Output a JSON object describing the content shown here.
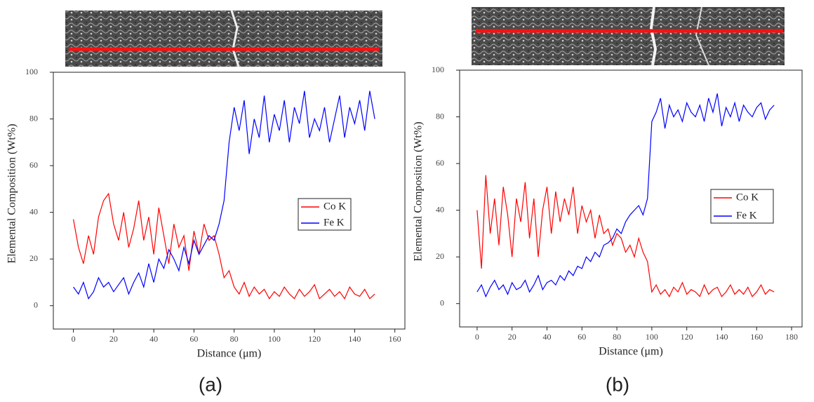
{
  "chart_data": [
    {
      "type": "line",
      "caption": "(a)",
      "x_label": "Distance (μm)",
      "y_label": "Elemental Composition (Wt%)",
      "xlim": [
        -10,
        165
      ],
      "ylim": [
        -10,
        100
      ],
      "xticks": [
        0,
        20,
        40,
        60,
        80,
        100,
        120,
        140,
        160
      ],
      "yticks": [
        0,
        20,
        40,
        60,
        80,
        100
      ],
      "legend": "center-right",
      "x": [
        0,
        2.5,
        5,
        7.5,
        10,
        12.5,
        15,
        17.5,
        20,
        22.5,
        25,
        27.5,
        30,
        32.5,
        35,
        37.5,
        40,
        42.5,
        45,
        47.5,
        50,
        52.5,
        55,
        57.5,
        60,
        62.5,
        65,
        67.5,
        70,
        72.5,
        75,
        77.5,
        80,
        82.5,
        85,
        87.5,
        90,
        92.5,
        95,
        97.5,
        100,
        102.5,
        105,
        107.5,
        110,
        112.5,
        115,
        117.5,
        120,
        122.5,
        125,
        127.5,
        130,
        132.5,
        135,
        137.5,
        140,
        142.5,
        145,
        147.5,
        150
      ],
      "series": [
        {
          "name": "Co K",
          "color": "#ff0000",
          "values": [
            37,
            25,
            18,
            30,
            22,
            38,
            45,
            48,
            35,
            28,
            40,
            25,
            33,
            45,
            28,
            38,
            22,
            42,
            30,
            18,
            35,
            25,
            30,
            15,
            32,
            22,
            35,
            28,
            30,
            22,
            12,
            15,
            8,
            5,
            10,
            4,
            8,
            5,
            7,
            3,
            6,
            4,
            8,
            5,
            3,
            7,
            4,
            6,
            9,
            3,
            5,
            7,
            4,
            6,
            3,
            8,
            5,
            4,
            7,
            3,
            5
          ]
        },
        {
          "name": "Fe K",
          "color": "#0000ff",
          "values": [
            8,
            5,
            10,
            3,
            6,
            12,
            8,
            10,
            6,
            9,
            12,
            5,
            10,
            14,
            8,
            18,
            10,
            20,
            16,
            24,
            20,
            15,
            25,
            18,
            28,
            22,
            26,
            30,
            28,
            35,
            45,
            70,
            85,
            75,
            88,
            65,
            80,
            72,
            90,
            70,
            82,
            75,
            88,
            70,
            85,
            78,
            92,
            72,
            80,
            75,
            85,
            70,
            80,
            90,
            72,
            85,
            78,
            88,
            75,
            92,
            80
          ]
        }
      ]
    },
    {
      "type": "line",
      "caption": "(b)",
      "x_label": "Distance (μm)",
      "y_label": "Elemental Composition (Wt%)",
      "xlim": [
        -10,
        186
      ],
      "ylim": [
        -10,
        100
      ],
      "xticks": [
        0,
        20,
        40,
        60,
        80,
        100,
        120,
        140,
        160,
        180
      ],
      "yticks": [
        0,
        20,
        40,
        60,
        80,
        100
      ],
      "legend": "center-right",
      "x": [
        0,
        2.5,
        5,
        7.5,
        10,
        12.5,
        15,
        17.5,
        20,
        22.5,
        25,
        27.5,
        30,
        32.5,
        35,
        37.5,
        40,
        42.5,
        45,
        47.5,
        50,
        52.5,
        55,
        57.5,
        60,
        62.5,
        65,
        67.5,
        70,
        72.5,
        75,
        77.5,
        80,
        82.5,
        85,
        87.5,
        90,
        92.5,
        95,
        97.5,
        100,
        102.5,
        105,
        107.5,
        110,
        112.5,
        115,
        117.5,
        120,
        122.5,
        125,
        127.5,
        130,
        132.5,
        135,
        137.5,
        140,
        142.5,
        145,
        147.5,
        150,
        152.5,
        155,
        157.5,
        160,
        162.5,
        165,
        167.5,
        170
      ],
      "series": [
        {
          "name": "Co K",
          "color": "#ff0000",
          "values": [
            40,
            15,
            55,
            30,
            45,
            25,
            50,
            38,
            20,
            45,
            35,
            52,
            28,
            45,
            20,
            40,
            50,
            30,
            48,
            35,
            45,
            38,
            50,
            30,
            42,
            35,
            40,
            28,
            38,
            30,
            32,
            25,
            30,
            28,
            22,
            25,
            20,
            28,
            22,
            18,
            5,
            8,
            4,
            6,
            3,
            7,
            5,
            9,
            4,
            6,
            5,
            3,
            8,
            4,
            6,
            7,
            3,
            5,
            8,
            4,
            6,
            4,
            7,
            3,
            5,
            8,
            4,
            6,
            5
          ]
        },
        {
          "name": "Fe K",
          "color": "#0000ff",
          "values": [
            5,
            8,
            3,
            7,
            10,
            6,
            8,
            4,
            9,
            6,
            7,
            10,
            5,
            8,
            12,
            6,
            9,
            10,
            8,
            12,
            10,
            14,
            12,
            16,
            15,
            20,
            18,
            22,
            20,
            25,
            26,
            28,
            32,
            30,
            35,
            38,
            40,
            42,
            38,
            45,
            78,
            82,
            88,
            75,
            85,
            80,
            83,
            78,
            86,
            82,
            80,
            85,
            78,
            88,
            82,
            90,
            76,
            84,
            80,
            86,
            78,
            85,
            82,
            80,
            84,
            86,
            79,
            83,
            85
          ]
        }
      ]
    }
  ]
}
